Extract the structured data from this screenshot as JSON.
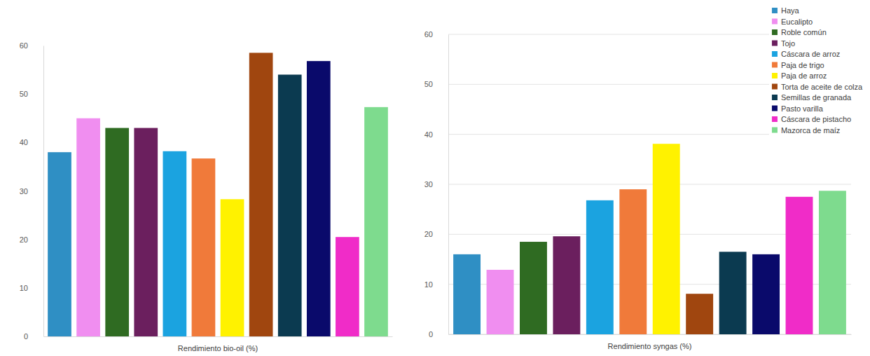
{
  "chart_data": [
    {
      "type": "bar",
      "x_label": "Rendimiento bio-oil (%)",
      "categories": [
        "Haya",
        "Eucalipto",
        "Roble común",
        "Tojo",
        "Cáscara de arroz",
        "Paja de trigo",
        "Paja de arroz",
        "Torta de aceite de colza",
        "Semillas de granada",
        "Pasto varilla",
        "Cáscara de pistacho",
        "Mazorca de maíz"
      ],
      "values": [
        38,
        45,
        43,
        43,
        38.2,
        36.7,
        28.3,
        58.5,
        54,
        56.8,
        20.5,
        47.3
      ],
      "colors": [
        "#2f8fc4",
        "#f08ef0",
        "#2f6b22",
        "#6b1f5e",
        "#1ba3e0",
        "#f07a3a",
        "#fff200",
        "#a0460f",
        "#0b3a50",
        "#0a0a6b",
        "#f02cc8",
        "#7edb8e"
      ],
      "ylim": [
        0,
        60
      ],
      "yticks": [
        0,
        10,
        20,
        30,
        40,
        50,
        60
      ],
      "grid": false,
      "tick_labels": "y"
    },
    {
      "type": "bar",
      "x_label": "Rendimiento syngas (%)",
      "categories": [
        "Haya",
        "Eucalipto",
        "Roble común",
        "Tojo",
        "Cáscara de arroz",
        "Paja de trigo",
        "Paja de arroz",
        "Torta de aceite de colza",
        "Semillas de granada",
        "Pasto varilla",
        "Cáscara de pistacho",
        "Mazorca de maíz"
      ],
      "values": [
        16,
        12.9,
        18.5,
        19.6,
        26.8,
        29,
        38.1,
        8.1,
        16.5,
        16,
        27.5,
        28.7
      ],
      "colors": [
        "#2f8fc4",
        "#f08ef0",
        "#2f6b22",
        "#6b1f5e",
        "#1ba3e0",
        "#f07a3a",
        "#fff200",
        "#a0460f",
        "#0b3a50",
        "#0a0a6b",
        "#f02cc8",
        "#7edb8e"
      ],
      "ylim": [
        0,
        60
      ],
      "yticks": [
        0,
        10,
        20,
        30,
        40,
        50,
        60
      ],
      "grid": true,
      "tick_labels": "y",
      "legend": "top-right"
    }
  ]
}
